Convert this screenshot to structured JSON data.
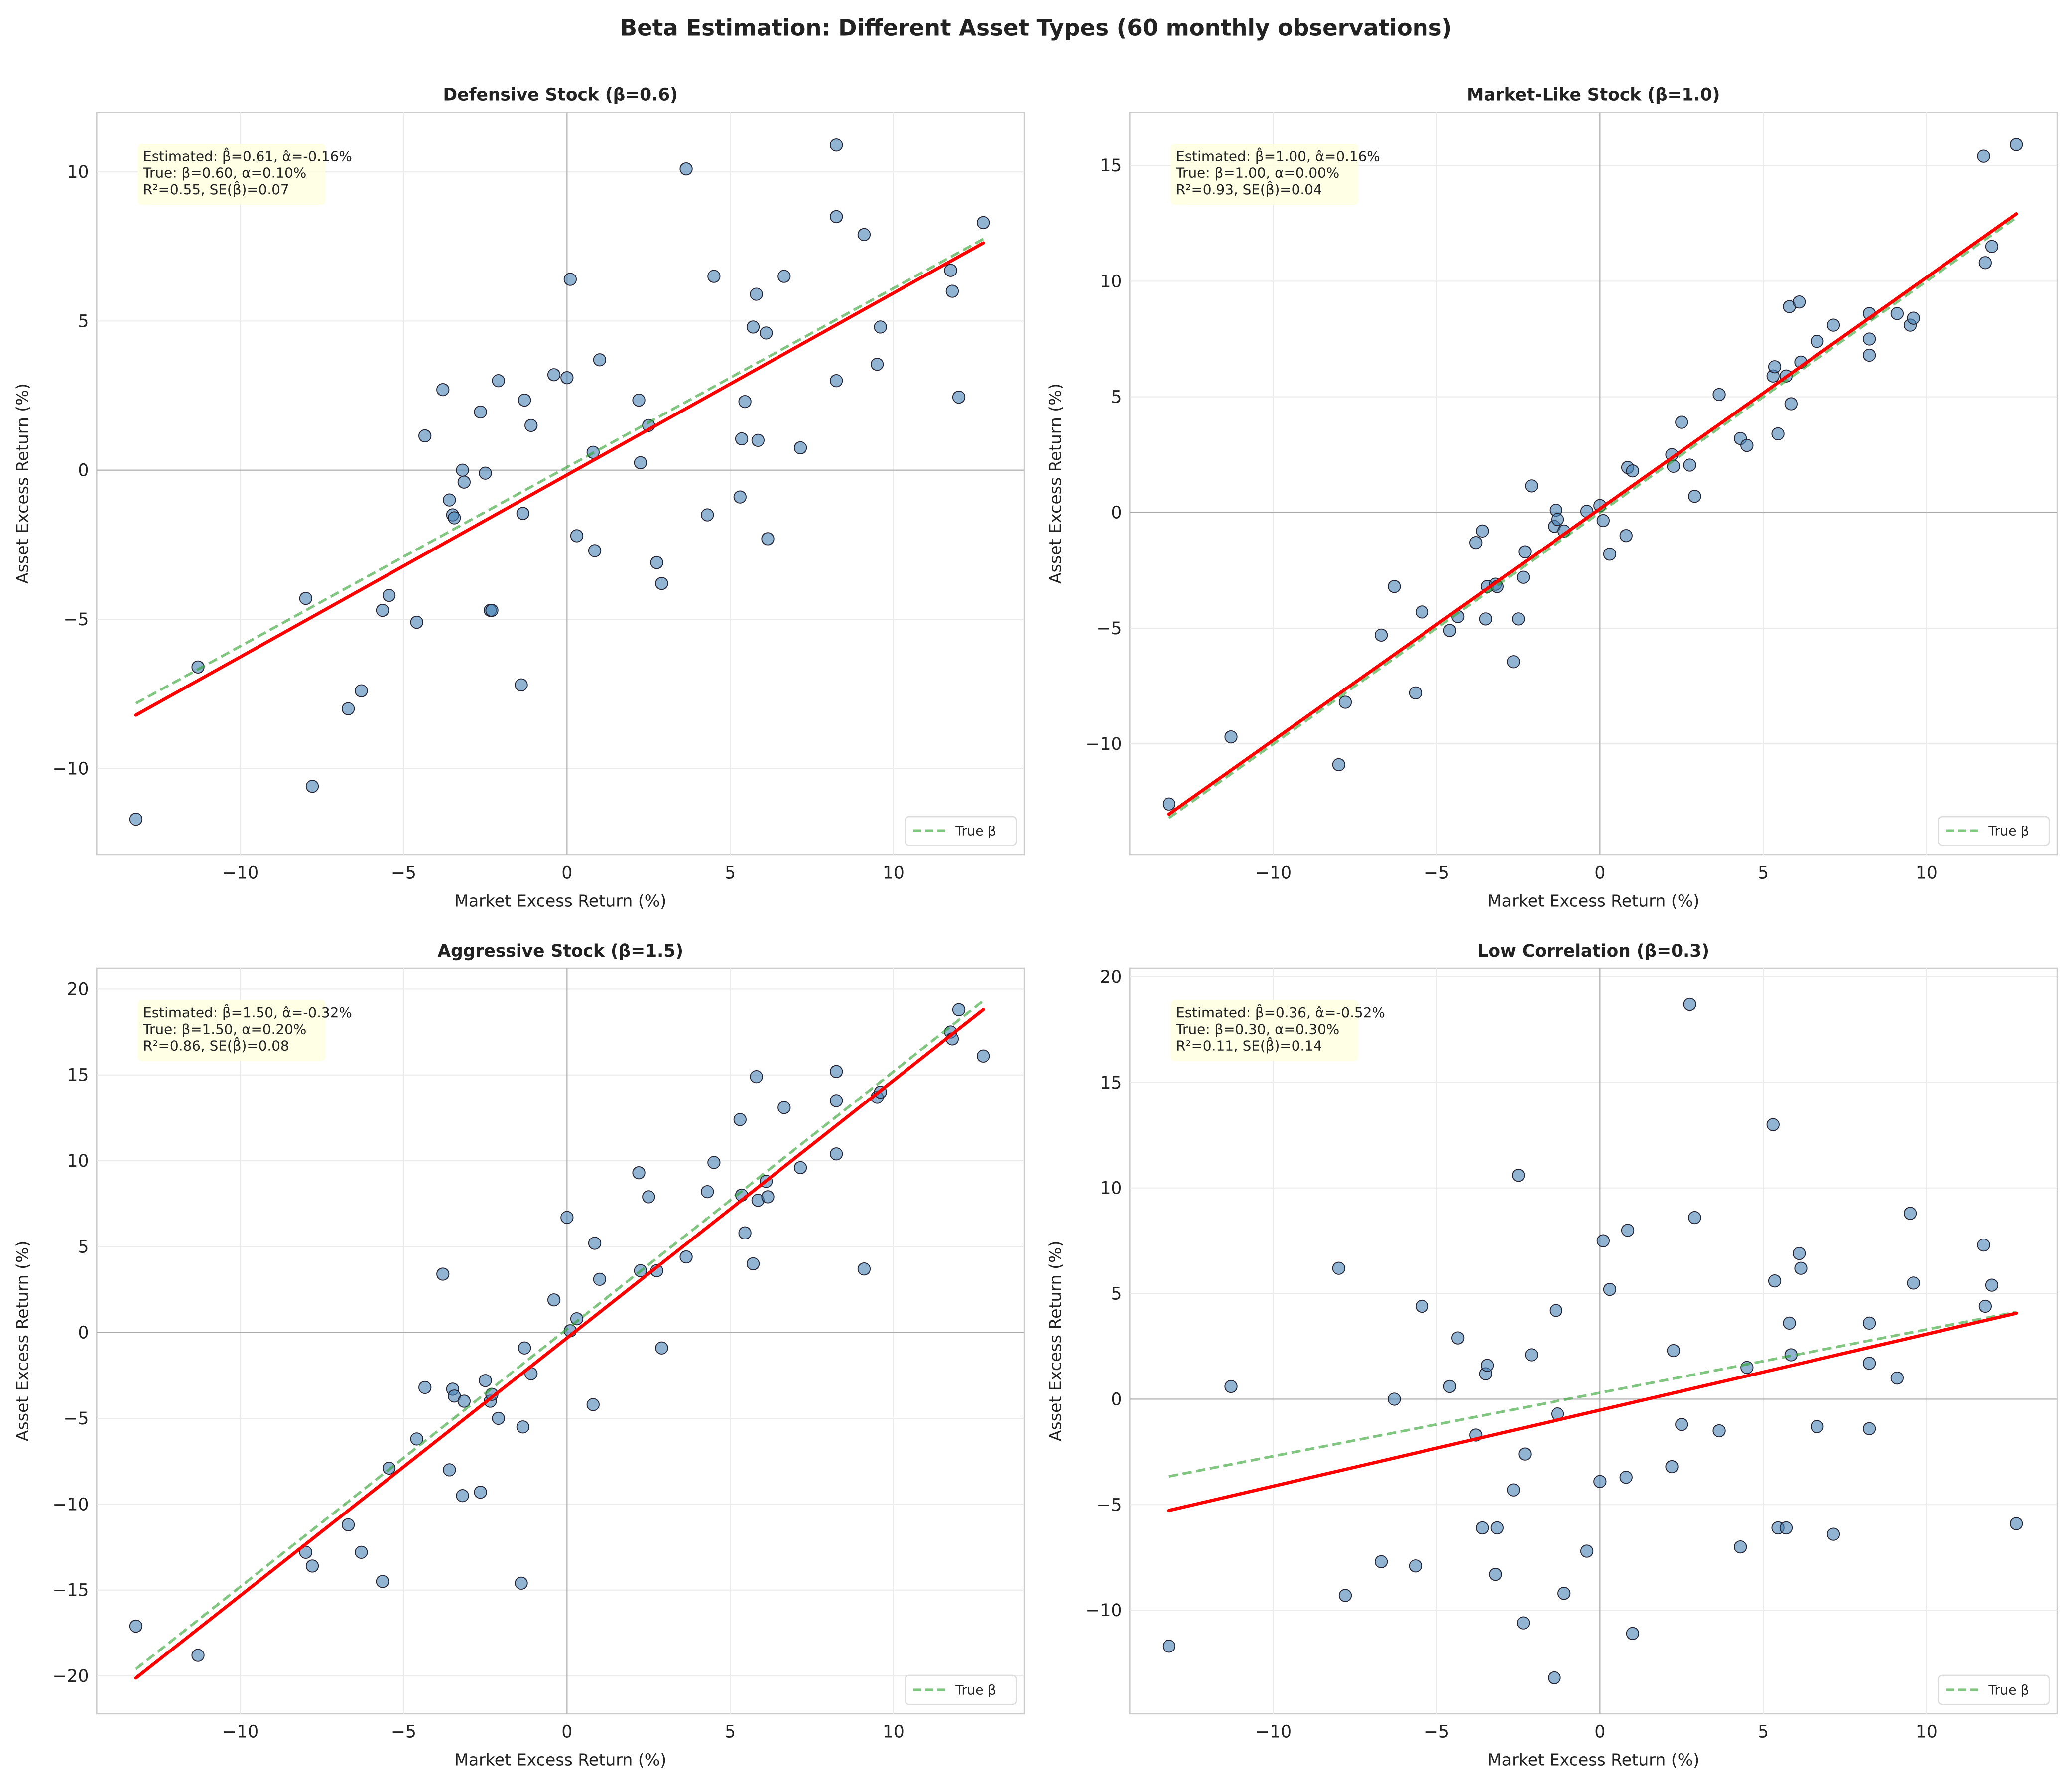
{
  "title": "Beta Estimation: Different Asset Types (60 monthly observations)",
  "colors": {
    "points": "#4682b4",
    "fitted": "#ff0000",
    "true_line": "#2ca02c",
    "annotation_bg": "#ffffe0"
  },
  "chart_data": [
    {
      "type": "scatter",
      "title": "Defensive Stock (β=0.6)",
      "xlabel": "Market Excess Return (%)",
      "ylabel": "Asset Excess Return (%)",
      "xlim": [
        -14.4,
        14.0
      ],
      "ylim": [
        -12.9,
        12.0
      ],
      "xticks": [
        -10,
        -5,
        0,
        5,
        10
      ],
      "yticks": [
        -10,
        -5,
        0,
        5,
        10
      ],
      "grid": true,
      "fitted": {
        "beta": 0.61,
        "alpha": -0.16
      },
      "true": {
        "beta": 0.6,
        "alpha": 0.1
      },
      "legend": {
        "label": "True β",
        "position": "lower-right"
      },
      "annotation": [
        "Estimated: β̂=0.61, α̂=-0.16%",
        "True: β=0.60, α=0.10%",
        "R²=0.55, SE(β̂)=0.07"
      ],
      "y": [
        -11.7,
        -6.6,
        -4.3,
        -10.6,
        -8.0,
        -7.4,
        -4.7,
        -4.2,
        -5.1,
        1.15,
        2.7,
        -1.0,
        -1.5,
        -1.6,
        0.0,
        -0.4,
        1.95,
        -0.1,
        -4.7,
        -4.7,
        3.0,
        -7.2,
        -1.45,
        2.35,
        1.5,
        3.2,
        3.1,
        6.4,
        -2.2,
        0.6,
        -2.7,
        3.7,
        2.35,
        0.25,
        1.5,
        -3.1,
        -3.8,
        10.1,
        -1.5,
        6.5,
        -0.9,
        1.05,
        2.3,
        4.8,
        5.9,
        1.0,
        4.6,
        -2.3,
        6.5,
        0.75,
        3.0,
        8.5,
        10.9,
        7.9,
        3.55,
        4.8,
        6.7,
        6.0,
        2.45,
        8.3
      ]
    },
    {
      "type": "scatter",
      "title": "Market-Like Stock (β=1.0)",
      "xlabel": "Market Excess Return (%)",
      "ylabel": "Asset Excess Return (%)",
      "xlim": [
        -14.4,
        14.0
      ],
      "ylim": [
        -14.8,
        17.3
      ],
      "xticks": [
        -10,
        -5,
        0,
        5,
        10
      ],
      "yticks": [
        -10,
        -5,
        0,
        5,
        10,
        15
      ],
      "grid": true,
      "fitted": {
        "beta": 1.0,
        "alpha": 0.16
      },
      "true": {
        "beta": 1.0,
        "alpha": 0.0
      },
      "legend": {
        "label": "True β",
        "position": "lower-right"
      },
      "annotation": [
        "Estimated: β̂=1.00, α̂=0.16%",
        "True: β=1.00, α=0.00%",
        "R²=0.93, SE(β̂)=0.04"
      ],
      "y": [
        -12.6,
        -9.7,
        -10.9,
        -8.2,
        -5.3,
        -3.2,
        -7.8,
        -4.3,
        -5.1,
        -4.5,
        -1.3,
        -0.8,
        -4.6,
        -3.2,
        -3.1,
        -3.2,
        -6.45,
        -4.6,
        -2.8,
        -1.7,
        1.15,
        -0.6,
        0.1,
        -0.3,
        -0.8,
        0.05,
        0.3,
        -0.35,
        -1.8,
        -1.0,
        1.95,
        1.8,
        2.5,
        2.0,
        3.9,
        2.05,
        0.7,
        5.1,
        3.2,
        2.9,
        5.9,
        6.3,
        3.4,
        5.9,
        8.9,
        4.7,
        9.1,
        6.5,
        7.4,
        8.1,
        6.8,
        7.5,
        8.6,
        8.6,
        8.1,
        8.4,
        15.4,
        10.8,
        11.5,
        15.9
      ]
    },
    {
      "type": "scatter",
      "title": "Aggressive Stock (β=1.5)",
      "xlabel": "Market Excess Return (%)",
      "ylabel": "Asset Excess Return (%)",
      "xlim": [
        -14.4,
        14.0
      ],
      "ylim": [
        -22.2,
        21.2
      ],
      "xticks": [
        -10,
        -5,
        0,
        5,
        10
      ],
      "yticks": [
        -20,
        -15,
        -10,
        -5,
        0,
        5,
        10,
        15,
        20
      ],
      "grid": true,
      "fitted": {
        "beta": 1.5,
        "alpha": -0.32
      },
      "true": {
        "beta": 1.5,
        "alpha": 0.2
      },
      "legend": {
        "label": "True β",
        "position": "lower-right"
      },
      "annotation": [
        "Estimated: β̂=1.50, α̂=-0.32%",
        "True: β=1.50, α=0.20%",
        "R²=0.86, SE(β̂)=0.08"
      ],
      "y": [
        -17.1,
        -18.8,
        -12.8,
        -13.6,
        -11.2,
        -12.8,
        -14.5,
        -7.9,
        -6.2,
        -3.2,
        3.4,
        -8.0,
        -3.3,
        -3.7,
        -9.5,
        -4.0,
        -9.3,
        -2.8,
        -4.0,
        -3.6,
        -5.0,
        -14.6,
        -5.5,
        -0.9,
        -2.4,
        1.9,
        6.7,
        0.1,
        0.8,
        -4.2,
        5.2,
        3.1,
        9.3,
        3.6,
        7.9,
        3.6,
        -0.9,
        4.4,
        8.2,
        9.9,
        12.4,
        8.0,
        5.8,
        4.0,
        14.9,
        7.7,
        8.8,
        7.9,
        13.1,
        9.6,
        15.2,
        13.5,
        10.4,
        3.7,
        13.7,
        14.0,
        17.5,
        17.1,
        18.8,
        16.1
      ]
    },
    {
      "type": "scatter",
      "title": "Low Correlation (β=0.3)",
      "xlabel": "Market Excess Return (%)",
      "ylabel": "Asset Excess Return (%)",
      "xlim": [
        -14.4,
        14.0
      ],
      "ylim": [
        -14.9,
        20.4
      ],
      "xticks": [
        -10,
        -5,
        0,
        5,
        10
      ],
      "yticks": [
        -10,
        -5,
        0,
        5,
        10,
        15,
        20
      ],
      "grid": true,
      "fitted": {
        "beta": 0.36,
        "alpha": -0.52
      },
      "true": {
        "beta": 0.3,
        "alpha": 0.3
      },
      "legend": {
        "label": "True β",
        "position": "lower-right"
      },
      "annotation": [
        "Estimated: β̂=0.36, α̂=-0.52%",
        "True: β=0.30, α=0.30%",
        "R²=0.11, SE(β̂)=0.14"
      ],
      "y": [
        -11.7,
        0.6,
        6.2,
        -9.3,
        -7.7,
        0.0,
        -7.9,
        4.4,
        0.6,
        2.9,
        -1.7,
        -6.1,
        1.2,
        1.6,
        -8.3,
        -6.1,
        -4.3,
        10.6,
        -10.6,
        -2.6,
        2.1,
        -13.2,
        4.2,
        -0.7,
        -9.2,
        -7.2,
        -3.9,
        7.5,
        5.2,
        -3.7,
        8.0,
        -11.1,
        -3.2,
        2.3,
        -1.2,
        18.7,
        8.6,
        -1.5,
        -7.0,
        1.5,
        13.0,
        5.6,
        -6.1,
        -6.1,
        3.6,
        2.1,
        6.9,
        6.2,
        -1.3,
        -6.4,
        3.6,
        1.7,
        -1.4,
        1.0,
        8.8,
        5.5,
        7.3,
        4.4,
        5.4,
        -5.9
      ]
    }
  ],
  "market_x": [
    -13.2,
    -11.3,
    -8.0,
    -7.8,
    -6.7,
    -6.3,
    -5.65,
    -5.45,
    -4.6,
    -4.35,
    -3.8,
    -3.6,
    -3.5,
    -3.45,
    -3.2,
    -3.15,
    -2.65,
    -2.5,
    -2.35,
    -2.3,
    -2.1,
    -1.4,
    -1.35,
    -1.3,
    -1.1,
    -0.4,
    0.0,
    0.1,
    0.3,
    0.8,
    0.85,
    1.0,
    2.2,
    2.25,
    2.5,
    2.75,
    2.9,
    3.65,
    4.3,
    4.5,
    5.3,
    5.35,
    5.45,
    5.7,
    5.8,
    5.85,
    6.1,
    6.15,
    6.65,
    7.15,
    8.25,
    8.25,
    8.25,
    9.1,
    9.5,
    9.6,
    11.75,
    11.8,
    12.0,
    12.75
  ]
}
